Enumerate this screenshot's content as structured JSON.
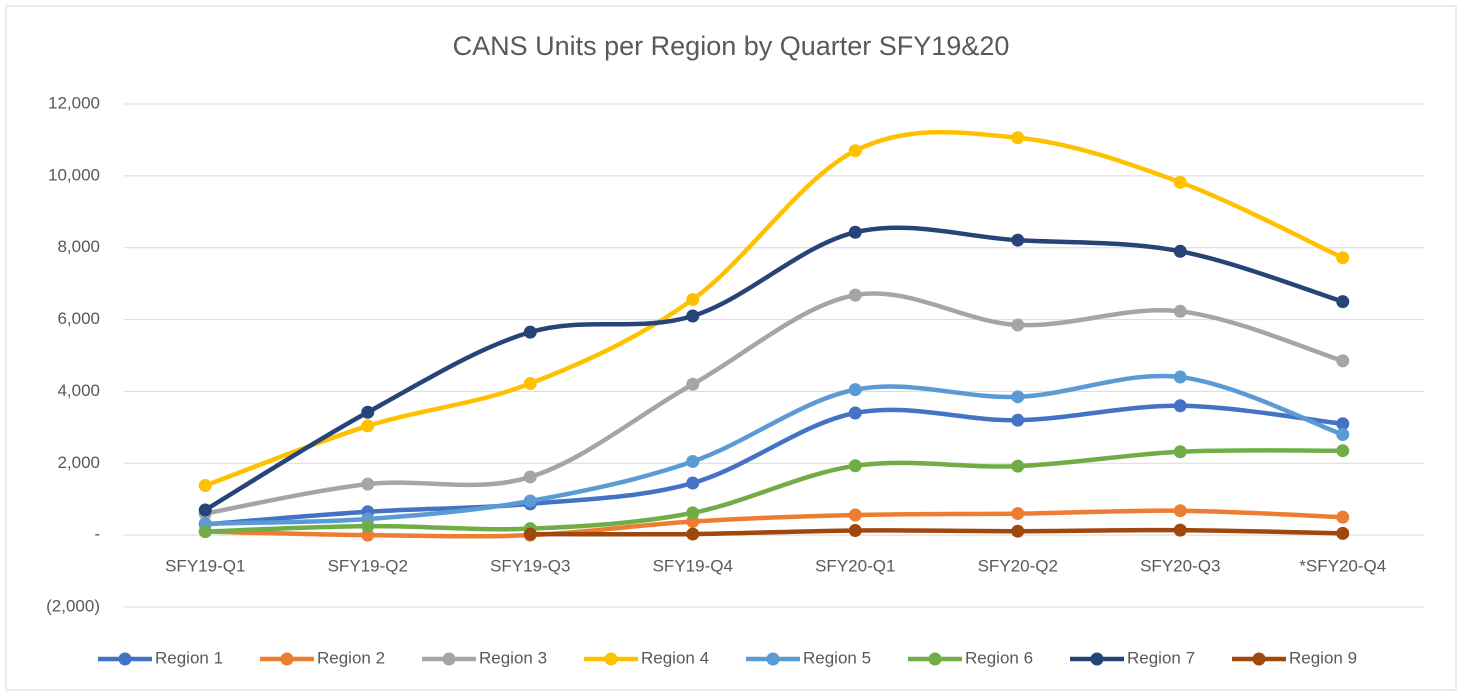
{
  "chart_data": {
    "type": "line",
    "title": "CANS Units per Region by Quarter SFY19&20",
    "categories": [
      "SFY19-Q1",
      "SFY19-Q2",
      "SFY19-Q3",
      "SFY19-Q4",
      "SFY20-Q1",
      "SFY20-Q2",
      "SFY20-Q3",
      "*SFY20-Q4"
    ],
    "series": [
      {
        "name": "Region 1",
        "color": "#4472c4",
        "values": [
          300,
          650,
          870,
          1450,
          3400,
          3200,
          3600,
          3100
        ]
      },
      {
        "name": "Region 2",
        "color": "#ed7d31",
        "values": [
          100,
          0,
          0,
          380,
          560,
          600,
          680,
          500
        ]
      },
      {
        "name": "Region 3",
        "color": "#a5a5a5",
        "values": [
          600,
          1420,
          1620,
          4200,
          6680,
          5850,
          6230,
          4850
        ]
      },
      {
        "name": "Region 4",
        "color": "#ffc000",
        "values": [
          1380,
          3040,
          4220,
          6560,
          10700,
          11060,
          9820,
          7720
        ]
      },
      {
        "name": "Region 5",
        "color": "#5b9bd5",
        "values": [
          320,
          450,
          950,
          2050,
          4050,
          3850,
          4400,
          2800
        ]
      },
      {
        "name": "Region 6",
        "color": "#70ad47",
        "values": [
          100,
          250,
          180,
          620,
          1930,
          1920,
          2320,
          2350
        ]
      },
      {
        "name": "Region 7",
        "color": "#264478",
        "values": [
          700,
          3420,
          5650,
          6100,
          8430,
          8210,
          7900,
          6500
        ]
      },
      {
        "name": "Region 9",
        "color": "#9e480e",
        "values": [
          null,
          null,
          30,
          30,
          130,
          110,
          140,
          50
        ]
      }
    ],
    "ylim": [
      -2000,
      12000
    ],
    "yticks": [
      {
        "value": -2000,
        "label": "(2,000)"
      },
      {
        "value": 0,
        "label": "-"
      },
      {
        "value": 2000,
        "label": "2,000"
      },
      {
        "value": 4000,
        "label": "4,000"
      },
      {
        "value": 6000,
        "label": "6,000"
      },
      {
        "value": 8000,
        "label": "8,000"
      },
      {
        "value": 10000,
        "label": "10,000"
      },
      {
        "value": 12000,
        "label": "12,000"
      }
    ],
    "grid": true,
    "smooth": true,
    "legend": "bottom"
  }
}
